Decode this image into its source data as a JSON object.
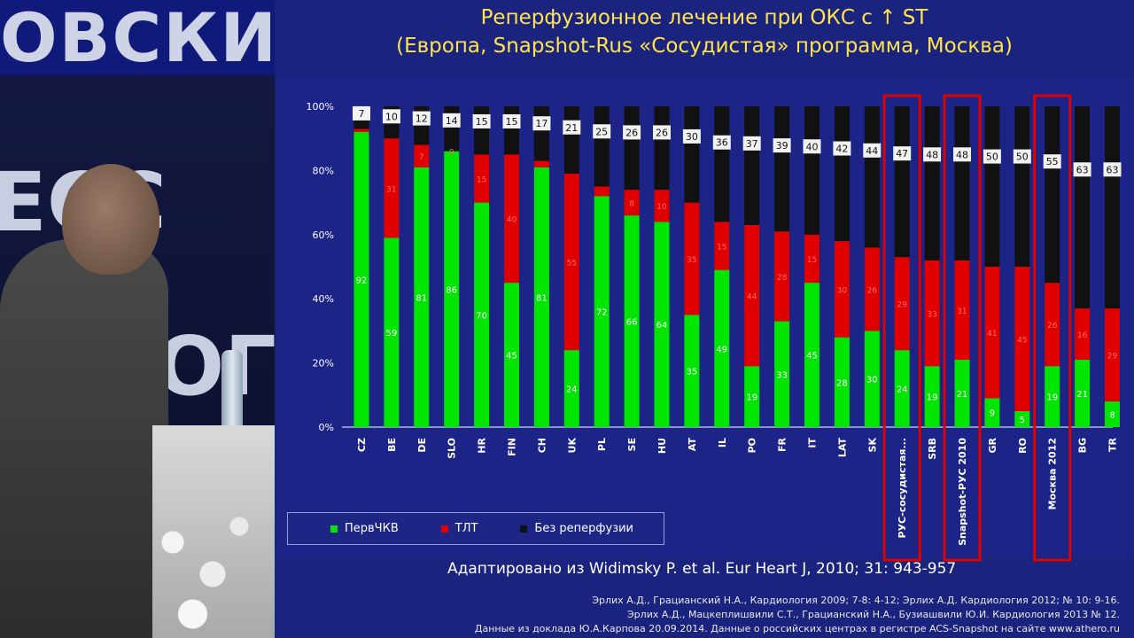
{
  "photo": {
    "banner_text": "ОВСКИ",
    "wall_letters": [
      "ЕСС",
      "ОГ"
    ]
  },
  "slide": {
    "title_line1": "Реперфузионное лечение при ОКС с ↑ ST",
    "title_line2": "(Европа, Snapshot-Rus «Сосудистая» программа, Москва)",
    "adapted": "Адаптировано из Widimsky P. et al. Eur Heart J, 2010; 31: 943-957",
    "references": [
      "Эрлих А.Д., Грацианский Н.А.,  Кардиология 2009; 7-8: 4-12;  Эрлих А.Д. Кардиология 2012; № 10: 9-16.",
      "Эрлих А.Д., Мацкеплишвили С.Т., Грацианский Н.А., Бузиашвили Ю.И. Кардиология 2013 № 12.",
      "Данные из доклада Ю.А.Карпова 20.09.2014. Данные о российских центрах в регистре ACS-Snapshot на сайте www.athero.ru"
    ],
    "legend": {
      "pci": "ПервЧКВ",
      "tlt": "ТЛТ",
      "none": "Без реперфузии"
    }
  },
  "chart_data": {
    "type": "bar",
    "stacked": true,
    "ylim": [
      0,
      100
    ],
    "yticks": [
      "0%",
      "20%",
      "40%",
      "60%",
      "80%",
      "100%"
    ],
    "categories": [
      "CZ",
      "BE",
      "DE",
      "SLO",
      "HR",
      "FIN",
      "CH",
      "UK",
      "PL",
      "SE",
      "HU",
      "AT",
      "IL",
      "PO",
      "FR",
      "IT",
      "LAT",
      "SK",
      "РУС-сосудистая...",
      "SRB",
      "Snapshot-РУС 2010",
      "GR",
      "RO",
      "Москва 2012",
      "BG",
      "TR"
    ],
    "series": [
      {
        "name": "ПервЧКВ",
        "color": "#00e600",
        "values": [
          92,
          59,
          81,
          86,
          70,
          45,
          81,
          24,
          72,
          66,
          64,
          35,
          49,
          19,
          33,
          45,
          28,
          30,
          24,
          19,
          21,
          9,
          5,
          19,
          21,
          8
        ],
        "labels": [
          "92",
          "59",
          "81",
          "86",
          "70",
          "45",
          "81",
          "24",
          "72",
          "66",
          "64",
          "35",
          "49",
          "19",
          "33",
          "45",
          "28",
          "30",
          "24",
          "19",
          "21",
          "9",
          "5",
          "19",
          "21",
          "8"
        ]
      },
      {
        "name": "ТЛТ",
        "color": "#e00000",
        "values": [
          1,
          31,
          7,
          0,
          15,
          40,
          2,
          55,
          3,
          8,
          10,
          35,
          15,
          44,
          28,
          15,
          30,
          26,
          29,
          33,
          31,
          41,
          45,
          26,
          16,
          29
        ],
        "labels": [
          "",
          "31",
          "7",
          "0",
          "15",
          "40",
          "",
          "55",
          "",
          "8",
          "10",
          "35",
          "15",
          "44",
          "28",
          "15",
          "30",
          "26",
          "29",
          "33",
          "31",
          "41",
          "45",
          "26",
          "16",
          "29"
        ]
      },
      {
        "name": "Без реперфузии",
        "color": "#111111",
        "values": [
          7,
          10,
          12,
          14,
          15,
          15,
          17,
          21,
          25,
          26,
          26,
          30,
          36,
          37,
          39,
          40,
          42,
          44,
          47,
          48,
          48,
          50,
          50,
          55,
          63,
          63
        ],
        "labels": [
          "7",
          "10",
          "12",
          "14",
          "15",
          "15",
          "17",
          "21",
          "25",
          "26",
          "26",
          "30",
          "36",
          "37",
          "39",
          "40",
          "42",
          "44",
          "47",
          "48",
          "48",
          "50",
          "50",
          "55",
          "63",
          "63"
        ]
      }
    ],
    "highlighted_categories": [
      "РУС-сосудистая...",
      "Snapshot-РУС 2010",
      "Москва 2012"
    ],
    "highlight_color": "#e00000",
    "grid": false,
    "legend_position": "bottom-left"
  }
}
